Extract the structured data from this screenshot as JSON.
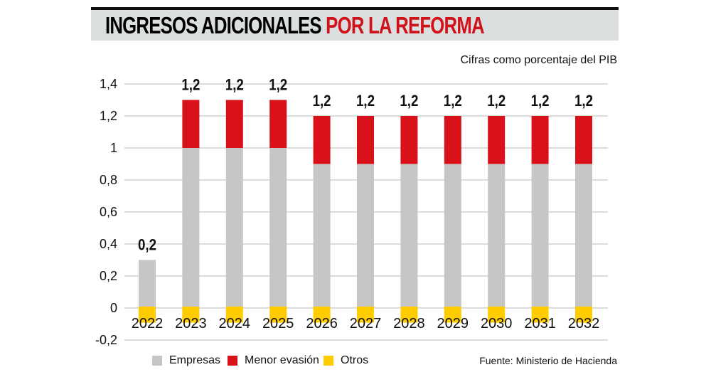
{
  "title_part1": "INGRESOS ADICIONALES",
  "title_part2": "POR LA REFORMA",
  "subtitle": "Cifras como porcentaje del PIB",
  "source": "Fuente: Ministerio de Hacienda",
  "colors": {
    "empresas": "#c6c6c6",
    "menor_evasion": "#d9111a",
    "otros": "#ffcc00",
    "title_red": "#d0121b"
  },
  "chart_data": {
    "type": "bar",
    "stacked": true,
    "title": "INGRESOS ADICIONALES POR LA REFORMA",
    "ylabel": "Cifras como porcentaje del PIB",
    "ylim": [
      -0.2,
      1.4
    ],
    "yticks": [
      "-0,2",
      "0",
      "0,2",
      "0,4",
      "0,6",
      "0,8",
      "1",
      "1,2",
      "1,4"
    ],
    "ytick_values": [
      -0.2,
      0,
      0.2,
      0.4,
      0.6,
      0.8,
      1,
      1.2,
      1.4
    ],
    "grid": true,
    "legend_position": "bottom-left",
    "categories": [
      "2022",
      "2023",
      "2024",
      "2025",
      "2026",
      "2027",
      "2028",
      "2029",
      "2030",
      "2031",
      "2032"
    ],
    "series": [
      {
        "name": "Empresas",
        "values": [
          0.3,
          1.0,
          1.0,
          1.0,
          0.9,
          0.9,
          0.9,
          0.9,
          0.9,
          0.9,
          0.9
        ]
      },
      {
        "name": "Menor evasión",
        "values": [
          0,
          0.3,
          0.3,
          0.3,
          0.3,
          0.3,
          0.3,
          0.3,
          0.3,
          0.3,
          0.3
        ]
      },
      {
        "name": "Otros",
        "values": [
          -0.1,
          -0.1,
          -0.1,
          -0.1,
          -0.1,
          -0.1,
          -0.1,
          -0.1,
          -0.1,
          -0.1,
          -0.1
        ]
      }
    ],
    "totals": [
      "0,2",
      "1,2",
      "1,2",
      "1,2",
      "1,2",
      "1,2",
      "1,2",
      "1,2",
      "1,2",
      "1,2",
      "1,2"
    ]
  }
}
